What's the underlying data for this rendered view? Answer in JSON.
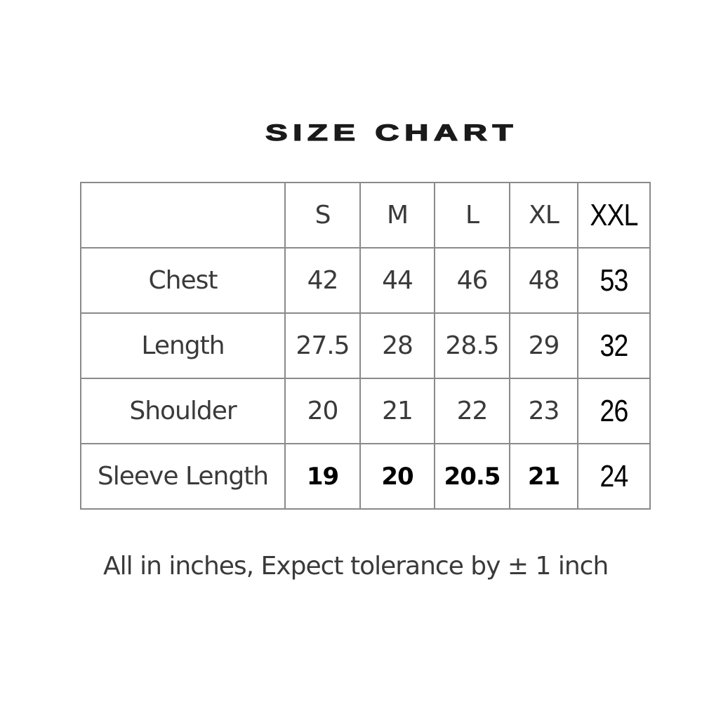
{
  "title": "SIZE CHART",
  "table": {
    "headers": [
      "",
      "S",
      "M",
      "L",
      "XL",
      "XXL"
    ],
    "rows": [
      {
        "label": "Chest",
        "values": [
          "42",
          "44",
          "46",
          "48",
          "53"
        ]
      },
      {
        "label": "Length",
        "values": [
          "27.5",
          "28",
          "28.5",
          "29",
          "32"
        ]
      },
      {
        "label": "Shoulder",
        "values": [
          "20",
          "21",
          "22",
          "23",
          "26"
        ]
      },
      {
        "label": "Sleeve Length",
        "values": [
          "19",
          "20",
          "20.5",
          "21",
          "24"
        ]
      }
    ]
  },
  "note": "All in inches, Expect tolerance by ± 1 inch"
}
